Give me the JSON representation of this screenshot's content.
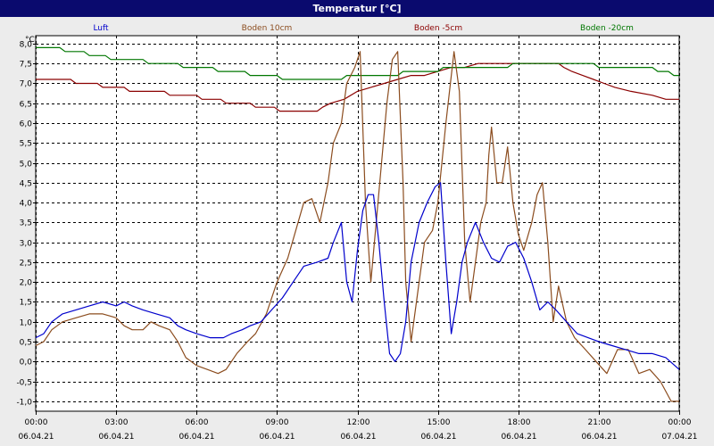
{
  "title": "Temperatur [°C]",
  "chart_data": {
    "type": "line",
    "title": "Temperatur [°C]",
    "ylabel": "°C",
    "xlabel": "",
    "ylim": [
      -1.25,
      8.2
    ],
    "xlim": [
      0,
      24
    ],
    "grid": true,
    "legend_placement": "top",
    "x_ticks": [
      {
        "x": 0,
        "time": "00:00",
        "date": "06.04.21"
      },
      {
        "x": 3,
        "time": "03:00",
        "date": "06.04.21"
      },
      {
        "x": 6,
        "time": "06:00",
        "date": "06.04.21"
      },
      {
        "x": 9,
        "time": "09:00",
        "date": "06.04.21"
      },
      {
        "x": 12,
        "time": "12:00",
        "date": "06.04.21"
      },
      {
        "x": 15,
        "time": "15:00",
        "date": "06.04.21"
      },
      {
        "x": 18,
        "time": "18:00",
        "date": "06.04.21"
      },
      {
        "x": 21,
        "time": "21:00",
        "date": "06.04.21"
      },
      {
        "x": 24,
        "time": "00:00",
        "date": "07.04.21"
      }
    ],
    "y_ticks": [
      {
        "v": -1.0,
        "label": "-1,0"
      },
      {
        "v": -0.5,
        "label": "-0,5"
      },
      {
        "v": 0.0,
        "label": "0,0"
      },
      {
        "v": 0.5,
        "label": "0,5"
      },
      {
        "v": 1.0,
        "label": "1,0"
      },
      {
        "v": 1.5,
        "label": "1,5"
      },
      {
        "v": 2.0,
        "label": "2,0"
      },
      {
        "v": 2.5,
        "label": "2,5"
      },
      {
        "v": 3.0,
        "label": "3,0"
      },
      {
        "v": 3.5,
        "label": "3,5"
      },
      {
        "v": 4.0,
        "label": "4,0"
      },
      {
        "v": 4.5,
        "label": "4,5"
      },
      {
        "v": 5.0,
        "label": "5,0"
      },
      {
        "v": 5.5,
        "label": "5,5"
      },
      {
        "v": 6.0,
        "label": "6,0"
      },
      {
        "v": 6.5,
        "label": "6,5"
      },
      {
        "v": 7.0,
        "label": "7,0"
      },
      {
        "v": 7.5,
        "label": "7,5"
      },
      {
        "v": 8.0,
        "label": "8,0"
      }
    ],
    "series": [
      {
        "name": "Luft",
        "color": "#0000cc",
        "points": [
          [
            0,
            0.6
          ],
          [
            0.3,
            0.7
          ],
          [
            0.6,
            1.0
          ],
          [
            1,
            1.2
          ],
          [
            1.5,
            1.3
          ],
          [
            2,
            1.4
          ],
          [
            2.5,
            1.5
          ],
          [
            3,
            1.4
          ],
          [
            3.3,
            1.5
          ],
          [
            3.6,
            1.4
          ],
          [
            4,
            1.3
          ],
          [
            4.5,
            1.2
          ],
          [
            5,
            1.1
          ],
          [
            5.3,
            0.9
          ],
          [
            5.6,
            0.8
          ],
          [
            6,
            0.7
          ],
          [
            6.5,
            0.6
          ],
          [
            7,
            0.6
          ],
          [
            7.3,
            0.7
          ],
          [
            7.7,
            0.8
          ],
          [
            8,
            0.9
          ],
          [
            8.4,
            1.0
          ],
          [
            8.8,
            1.3
          ],
          [
            9.2,
            1.6
          ],
          [
            9.6,
            2.0
          ],
          [
            10,
            2.4
          ],
          [
            10.5,
            2.5
          ],
          [
            10.9,
            2.6
          ],
          [
            11.1,
            3.0
          ],
          [
            11.4,
            3.5
          ],
          [
            11.6,
            2.0
          ],
          [
            11.8,
            1.5
          ],
          [
            12.0,
            2.8
          ],
          [
            12.2,
            3.8
          ],
          [
            12.4,
            4.2
          ],
          [
            12.6,
            4.2
          ],
          [
            12.8,
            3.0
          ],
          [
            13.0,
            1.5
          ],
          [
            13.2,
            0.2
          ],
          [
            13.4,
            0.0
          ],
          [
            13.6,
            0.2
          ],
          [
            13.8,
            1.0
          ],
          [
            14.0,
            2.5
          ],
          [
            14.3,
            3.5
          ],
          [
            14.6,
            4.0
          ],
          [
            14.9,
            4.4
          ],
          [
            15.1,
            4.5
          ],
          [
            15.3,
            2.5
          ],
          [
            15.5,
            0.7
          ],
          [
            15.7,
            1.5
          ],
          [
            15.9,
            2.5
          ],
          [
            16.1,
            3.0
          ],
          [
            16.4,
            3.5
          ],
          [
            16.7,
            3.0
          ],
          [
            17.0,
            2.6
          ],
          [
            17.3,
            2.5
          ],
          [
            17.6,
            2.9
          ],
          [
            17.9,
            3.0
          ],
          [
            18.2,
            2.6
          ],
          [
            18.5,
            2.0
          ],
          [
            18.8,
            1.3
          ],
          [
            19.1,
            1.5
          ],
          [
            19.4,
            1.3
          ],
          [
            19.8,
            1.0
          ],
          [
            20.2,
            0.7
          ],
          [
            20.6,
            0.6
          ],
          [
            21,
            0.5
          ],
          [
            21.5,
            0.4
          ],
          [
            22,
            0.3
          ],
          [
            22.5,
            0.2
          ],
          [
            23,
            0.2
          ],
          [
            23.5,
            0.1
          ],
          [
            24,
            -0.2
          ]
        ]
      },
      {
        "name": "Boden 10cm",
        "color": "#8b4c1e",
        "points": [
          [
            0,
            0.4
          ],
          [
            0.3,
            0.5
          ],
          [
            0.6,
            0.8
          ],
          [
            1,
            1.0
          ],
          [
            1.5,
            1.1
          ],
          [
            2,
            1.2
          ],
          [
            2.5,
            1.2
          ],
          [
            3,
            1.1
          ],
          [
            3.3,
            0.9
          ],
          [
            3.6,
            0.8
          ],
          [
            4,
            0.8
          ],
          [
            4.3,
            1.0
          ],
          [
            4.6,
            0.9
          ],
          [
            5,
            0.8
          ],
          [
            5.3,
            0.5
          ],
          [
            5.6,
            0.1
          ],
          [
            6,
            -0.1
          ],
          [
            6.4,
            -0.2
          ],
          [
            6.8,
            -0.3
          ],
          [
            7.1,
            -0.2
          ],
          [
            7.5,
            0.2
          ],
          [
            7.9,
            0.5
          ],
          [
            8.2,
            0.7
          ],
          [
            8.6,
            1.2
          ],
          [
            9,
            2.0
          ],
          [
            9.4,
            2.6
          ],
          [
            9.7,
            3.3
          ],
          [
            10.0,
            4.0
          ],
          [
            10.3,
            4.1
          ],
          [
            10.6,
            3.5
          ],
          [
            10.9,
            4.5
          ],
          [
            11.1,
            5.5
          ],
          [
            11.4,
            6.0
          ],
          [
            11.6,
            7.0
          ],
          [
            11.9,
            7.4
          ],
          [
            12.1,
            7.8
          ],
          [
            12.3,
            4.0
          ],
          [
            12.5,
            2.0
          ],
          [
            12.7,
            3.5
          ],
          [
            12.9,
            5.0
          ],
          [
            13.1,
            6.5
          ],
          [
            13.3,
            7.6
          ],
          [
            13.5,
            7.8
          ],
          [
            13.7,
            4.5
          ],
          [
            13.8,
            2.0
          ],
          [
            14.0,
            0.5
          ],
          [
            14.2,
            1.5
          ],
          [
            14.5,
            3.0
          ],
          [
            14.8,
            3.3
          ],
          [
            15.0,
            4.0
          ],
          [
            15.3,
            6.0
          ],
          [
            15.6,
            7.8
          ],
          [
            15.8,
            6.8
          ],
          [
            16.0,
            3.0
          ],
          [
            16.2,
            1.5
          ],
          [
            16.4,
            2.5
          ],
          [
            16.6,
            3.5
          ],
          [
            16.8,
            4.0
          ],
          [
            16.9,
            5.2
          ],
          [
            17.0,
            5.9
          ],
          [
            17.2,
            4.5
          ],
          [
            17.4,
            4.5
          ],
          [
            17.6,
            5.4
          ],
          [
            17.8,
            4.0
          ],
          [
            18.0,
            3.2
          ],
          [
            18.2,
            2.8
          ],
          [
            18.5,
            3.5
          ],
          [
            18.7,
            4.2
          ],
          [
            18.9,
            4.5
          ],
          [
            19.1,
            3.0
          ],
          [
            19.3,
            1.0
          ],
          [
            19.5,
            1.9
          ],
          [
            19.8,
            1.0
          ],
          [
            20.1,
            0.6
          ],
          [
            20.5,
            0.3
          ],
          [
            20.9,
            0.0
          ],
          [
            21.3,
            -0.3
          ],
          [
            21.7,
            0.3
          ],
          [
            22.1,
            0.3
          ],
          [
            22.5,
            -0.3
          ],
          [
            22.9,
            -0.2
          ],
          [
            23.3,
            -0.5
          ],
          [
            23.7,
            -1.0
          ],
          [
            24,
            -1.0
          ]
        ]
      },
      {
        "name": "Boden -5cm",
        "color": "#8b0000",
        "points": [
          [
            0,
            7.1
          ],
          [
            1.3,
            7.1
          ],
          [
            1.5,
            7.0
          ],
          [
            2.3,
            7.0
          ],
          [
            2.5,
            6.9
          ],
          [
            3.3,
            6.9
          ],
          [
            3.5,
            6.8
          ],
          [
            4.8,
            6.8
          ],
          [
            5.0,
            6.7
          ],
          [
            6.0,
            6.7
          ],
          [
            6.2,
            6.6
          ],
          [
            6.9,
            6.6
          ],
          [
            7.1,
            6.5
          ],
          [
            8.0,
            6.5
          ],
          [
            8.2,
            6.4
          ],
          [
            8.9,
            6.4
          ],
          [
            9.1,
            6.3
          ],
          [
            10.5,
            6.3
          ],
          [
            10.7,
            6.4
          ],
          [
            11.0,
            6.5
          ],
          [
            11.5,
            6.6
          ],
          [
            12.0,
            6.8
          ],
          [
            12.5,
            6.9
          ],
          [
            13.0,
            7.0
          ],
          [
            13.5,
            7.1
          ],
          [
            14.0,
            7.2
          ],
          [
            14.5,
            7.2
          ],
          [
            15.0,
            7.3
          ],
          [
            15.5,
            7.4
          ],
          [
            16.0,
            7.4
          ],
          [
            16.5,
            7.5
          ],
          [
            19.5,
            7.5
          ],
          [
            19.7,
            7.4
          ],
          [
            20.0,
            7.3
          ],
          [
            20.4,
            7.2
          ],
          [
            20.8,
            7.1
          ],
          [
            21.2,
            7.0
          ],
          [
            21.6,
            6.9
          ],
          [
            22.2,
            6.8
          ],
          [
            23.0,
            6.7
          ],
          [
            23.5,
            6.6
          ],
          [
            24,
            6.6
          ]
        ]
      },
      {
        "name": "Boden -20cm",
        "color": "#007700",
        "points": [
          [
            0,
            7.9
          ],
          [
            0.9,
            7.9
          ],
          [
            1.1,
            7.8
          ],
          [
            1.8,
            7.8
          ],
          [
            2.0,
            7.7
          ],
          [
            2.6,
            7.7
          ],
          [
            2.8,
            7.6
          ],
          [
            4.0,
            7.6
          ],
          [
            4.2,
            7.5
          ],
          [
            5.3,
            7.5
          ],
          [
            5.5,
            7.4
          ],
          [
            6.6,
            7.4
          ],
          [
            6.8,
            7.3
          ],
          [
            7.8,
            7.3
          ],
          [
            8.0,
            7.2
          ],
          [
            9.0,
            7.2
          ],
          [
            9.2,
            7.1
          ],
          [
            11.4,
            7.1
          ],
          [
            11.6,
            7.2
          ],
          [
            13.5,
            7.2
          ],
          [
            13.7,
            7.3
          ],
          [
            15.0,
            7.3
          ],
          [
            15.2,
            7.4
          ],
          [
            17.6,
            7.4
          ],
          [
            17.8,
            7.5
          ],
          [
            20.8,
            7.5
          ],
          [
            21.0,
            7.4
          ],
          [
            23.0,
            7.4
          ],
          [
            23.2,
            7.3
          ],
          [
            23.6,
            7.3
          ],
          [
            23.8,
            7.2
          ],
          [
            24,
            7.2
          ]
        ]
      }
    ]
  }
}
